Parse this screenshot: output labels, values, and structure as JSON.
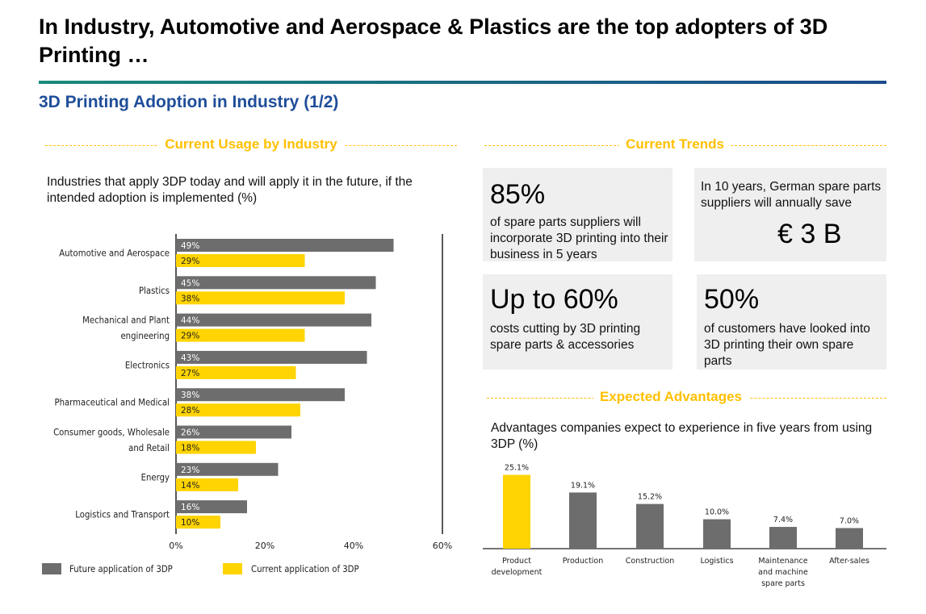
{
  "header": {
    "title": "In Industry, Automotive and Aerospace & Plastics are the top adopters of 3D Printing …",
    "subtitle": "3D Printing Adoption in Industry (1/2)"
  },
  "sections": {
    "usage": "Current Usage by Industry",
    "trends": "Current Trends",
    "advantages": "Expected Advantages"
  },
  "usage_caption": "Industries that apply 3DP today and will apply it in the future, if the intended adoption is implemented (%)",
  "advantages_caption": "Advantages companies expect to experience in five years from using 3DP (%)",
  "trends": {
    "card1": {
      "big": "85%",
      "text": "of spare parts suppliers will incorporate 3D printing into their business in 5 years"
    },
    "card2": {
      "text": "In 10 years, German spare parts suppliers will annually save",
      "big": "€ 3 B"
    },
    "card3": {
      "big": "Up to 60%",
      "text": "costs cutting by 3D printing spare parts & accessories"
    },
    "card4": {
      "big": "50%",
      "text": "of customers have looked into 3D printing their own spare parts"
    }
  },
  "colors": {
    "future": "#6d6d6d",
    "current": "#ffd400",
    "accent": "#ffc000",
    "subtitle": "#1f4e9a"
  },
  "chart_data": [
    {
      "type": "bar",
      "orientation": "horizontal",
      "categories": [
        [
          "Automotive and Aerospace"
        ],
        [
          "Plastics"
        ],
        [
          "Mechanical and Plant",
          "engineering"
        ],
        [
          "Electronics"
        ],
        [
          "Pharmaceutical and Medical"
        ],
        [
          "Consumer goods, Wholesale",
          "and Retail"
        ],
        [
          "Energy"
        ],
        [
          "Logistics and Transport"
        ]
      ],
      "series": [
        {
          "name": "Future application of 3DP",
          "values": [
            49,
            45,
            44,
            43,
            38,
            26,
            23,
            16
          ],
          "labels": [
            "49%",
            "45%",
            "44%",
            "43%",
            "38%",
            "26%",
            "23%",
            "16%"
          ]
        },
        {
          "name": "Current application of 3DP",
          "values": [
            29,
            38,
            29,
            27,
            28,
            18,
            14,
            10
          ],
          "labels": [
            "29%",
            "38%",
            "29%",
            "27%",
            "28%",
            "18%",
            "14%",
            "10%"
          ]
        }
      ],
      "xlim": [
        0,
        60
      ],
      "xticks": [
        0,
        20,
        40,
        60
      ],
      "xtick_labels": [
        "0%",
        "20%",
        "40%",
        "60%"
      ],
      "legend": "bottom"
    },
    {
      "type": "bar",
      "categories": [
        [
          "Product",
          "development"
        ],
        [
          "Production"
        ],
        [
          "Construction"
        ],
        [
          "Logistics"
        ],
        [
          "Maintenance",
          "and machine",
          "spare parts"
        ],
        [
          "After-sales"
        ]
      ],
      "values": [
        25.1,
        19.1,
        15.2,
        10.0,
        7.4,
        7.0
      ],
      "labels": [
        "25.1%",
        "19.1%",
        "15.2%",
        "10.0%",
        "7.4%",
        "7.0%"
      ],
      "ylim": [
        0,
        28
      ]
    }
  ]
}
